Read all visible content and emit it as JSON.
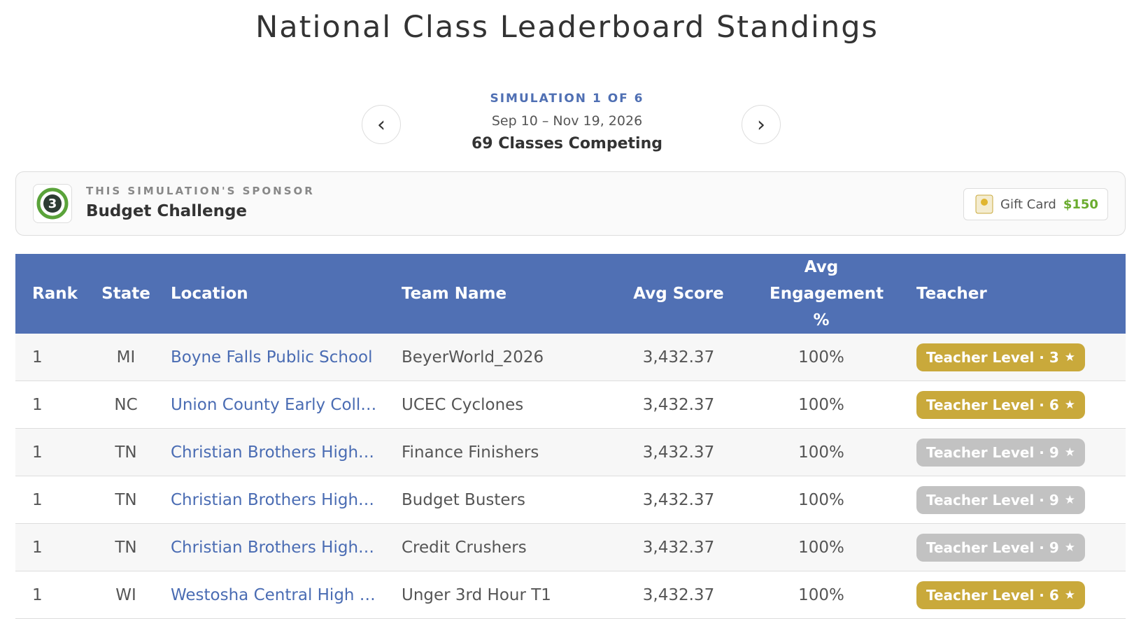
{
  "header": {
    "title": "National Class Leaderboard Standings",
    "simulation": "SIMULATION 1 OF 6",
    "dates": "Sep 10 – Nov 19, 2026",
    "competing": "69 Classes Competing"
  },
  "sponsor": {
    "label": "THIS SIMULATION'S SPONSOR",
    "name": "Budget Challenge",
    "prize_label": "Gift Card",
    "prize_amount": "$150"
  },
  "table": {
    "columns": [
      "Rank",
      "State",
      "Location",
      "Team Name",
      "Avg Score",
      "Avg Engagement %",
      "Teacher"
    ],
    "rows": [
      [
        "1",
        "MI",
        "Boyne Falls Public School",
        "BeyerWorld_2026",
        "3,432.37",
        "100%",
        "Teacher Level · 3"
      ],
      [
        "1",
        "NC",
        "Union County Early Coll…",
        "UCEC Cyclones",
        "3,432.37",
        "100%",
        "Teacher Level · 6"
      ],
      [
        "1",
        "TN",
        "Christian Brothers High…",
        "Finance Finishers",
        "3,432.37",
        "100%",
        "Teacher Level · 9"
      ],
      [
        "1",
        "TN",
        "Christian Brothers High…",
        "Budget Busters",
        "3,432.37",
        "100%",
        "Teacher Level · 9"
      ],
      [
        "1",
        "TN",
        "Christian Brothers High…",
        "Credit Crushers",
        "3,432.37",
        "100%",
        "Teacher Level · 9"
      ],
      [
        "1",
        "WI",
        "Westosha Central High …",
        "Unger 3rd Hour T1",
        "3,432.37",
        "100%",
        "Teacher Level · 6"
      ]
    ],
    "badge_colors": [
      "#c9a93b",
      "#c9a93b",
      "#c2c2c2",
      "#c2c2c2",
      "#c2c2c2",
      "#c9a93b"
    ]
  }
}
